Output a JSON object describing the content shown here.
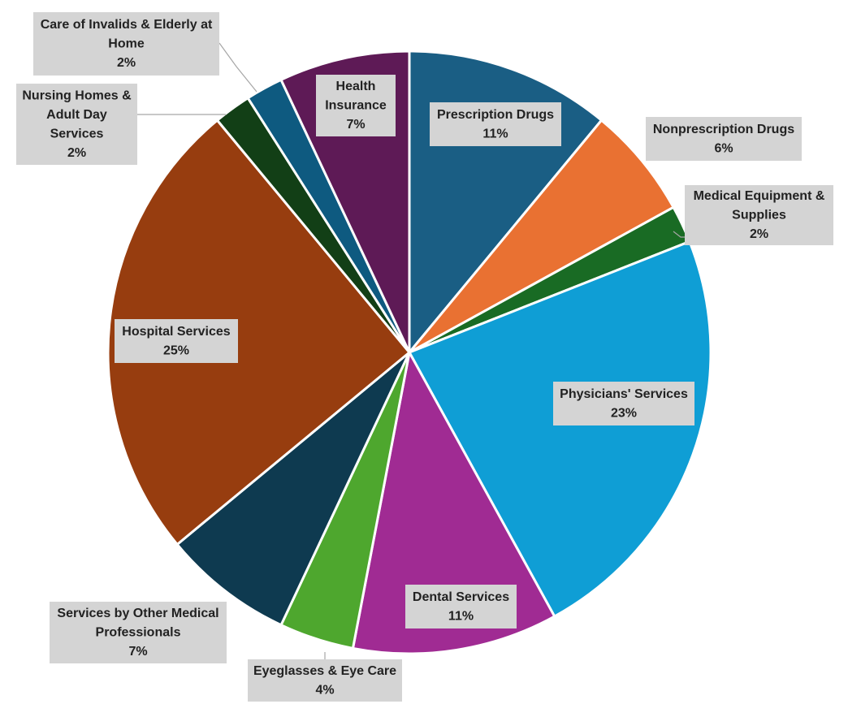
{
  "chart_data": {
    "type": "pie",
    "title": "",
    "start_angle_deg": 0,
    "direction": "clockwise",
    "slices": [
      {
        "name": "Prescription Drugs",
        "value": 11,
        "percent_label": "11%",
        "color": "#1a5e84"
      },
      {
        "name": "Nonprescription Drugs",
        "value": 6,
        "percent_label": "6%",
        "color": "#e97132"
      },
      {
        "name": "Medical Equipment & Supplies",
        "value": 2,
        "percent_label": "2%",
        "color": "#196b24"
      },
      {
        "name": "Physicians' Services",
        "value": 23,
        "percent_label": "23%",
        "color": "#0f9ed5"
      },
      {
        "name": "Dental Services",
        "value": 11,
        "percent_label": "11%",
        "color": "#a02b93"
      },
      {
        "name": "Eyeglasses & Eye Care",
        "value": 4,
        "percent_label": "4%",
        "color": "#4ea72e"
      },
      {
        "name": "Services by Other Medical Professionals",
        "value": 7,
        "percent_label": "7%",
        "color": "#0e3a50"
      },
      {
        "name": "Hospital Services",
        "value": 25,
        "percent_label": "25%",
        "color": "#973d0f"
      },
      {
        "name": "Nursing Homes & Adult Day Services",
        "value": 2,
        "percent_label": "2%",
        "color": "#123f16"
      },
      {
        "name": "Care of Invalids & Elderly at Home",
        "value": 2,
        "percent_label": "2%",
        "color": "#0e5a80"
      },
      {
        "name": "Health Insurance",
        "value": 7,
        "percent_label": "7%",
        "color": "#5e1a56"
      }
    ],
    "labels": [
      {
        "lines": [
          "Prescription Drugs",
          "11%"
        ]
      },
      {
        "lines": [
          "Nonprescription Drugs",
          "6%"
        ]
      },
      {
        "lines": [
          "Medical Equipment &",
          "Supplies",
          "2%"
        ]
      },
      {
        "lines": [
          "Physicians' Services",
          "23%"
        ]
      },
      {
        "lines": [
          "Dental Services",
          "11%"
        ]
      },
      {
        "lines": [
          "Eyeglasses & Eye Care",
          "4%"
        ]
      },
      {
        "lines": [
          "Services by Other Medical",
          "Professionals",
          "7%"
        ]
      },
      {
        "lines": [
          "Hospital Services",
          "25%"
        ]
      },
      {
        "lines": [
          "Nursing Homes &",
          "Adult Day",
          "Services",
          "2%"
        ]
      },
      {
        "lines": [
          "Care of Invalids & Elderly at",
          "Home",
          "2%"
        ]
      },
      {
        "lines": [
          "Health",
          "Insurance",
          "7%"
        ]
      }
    ]
  }
}
